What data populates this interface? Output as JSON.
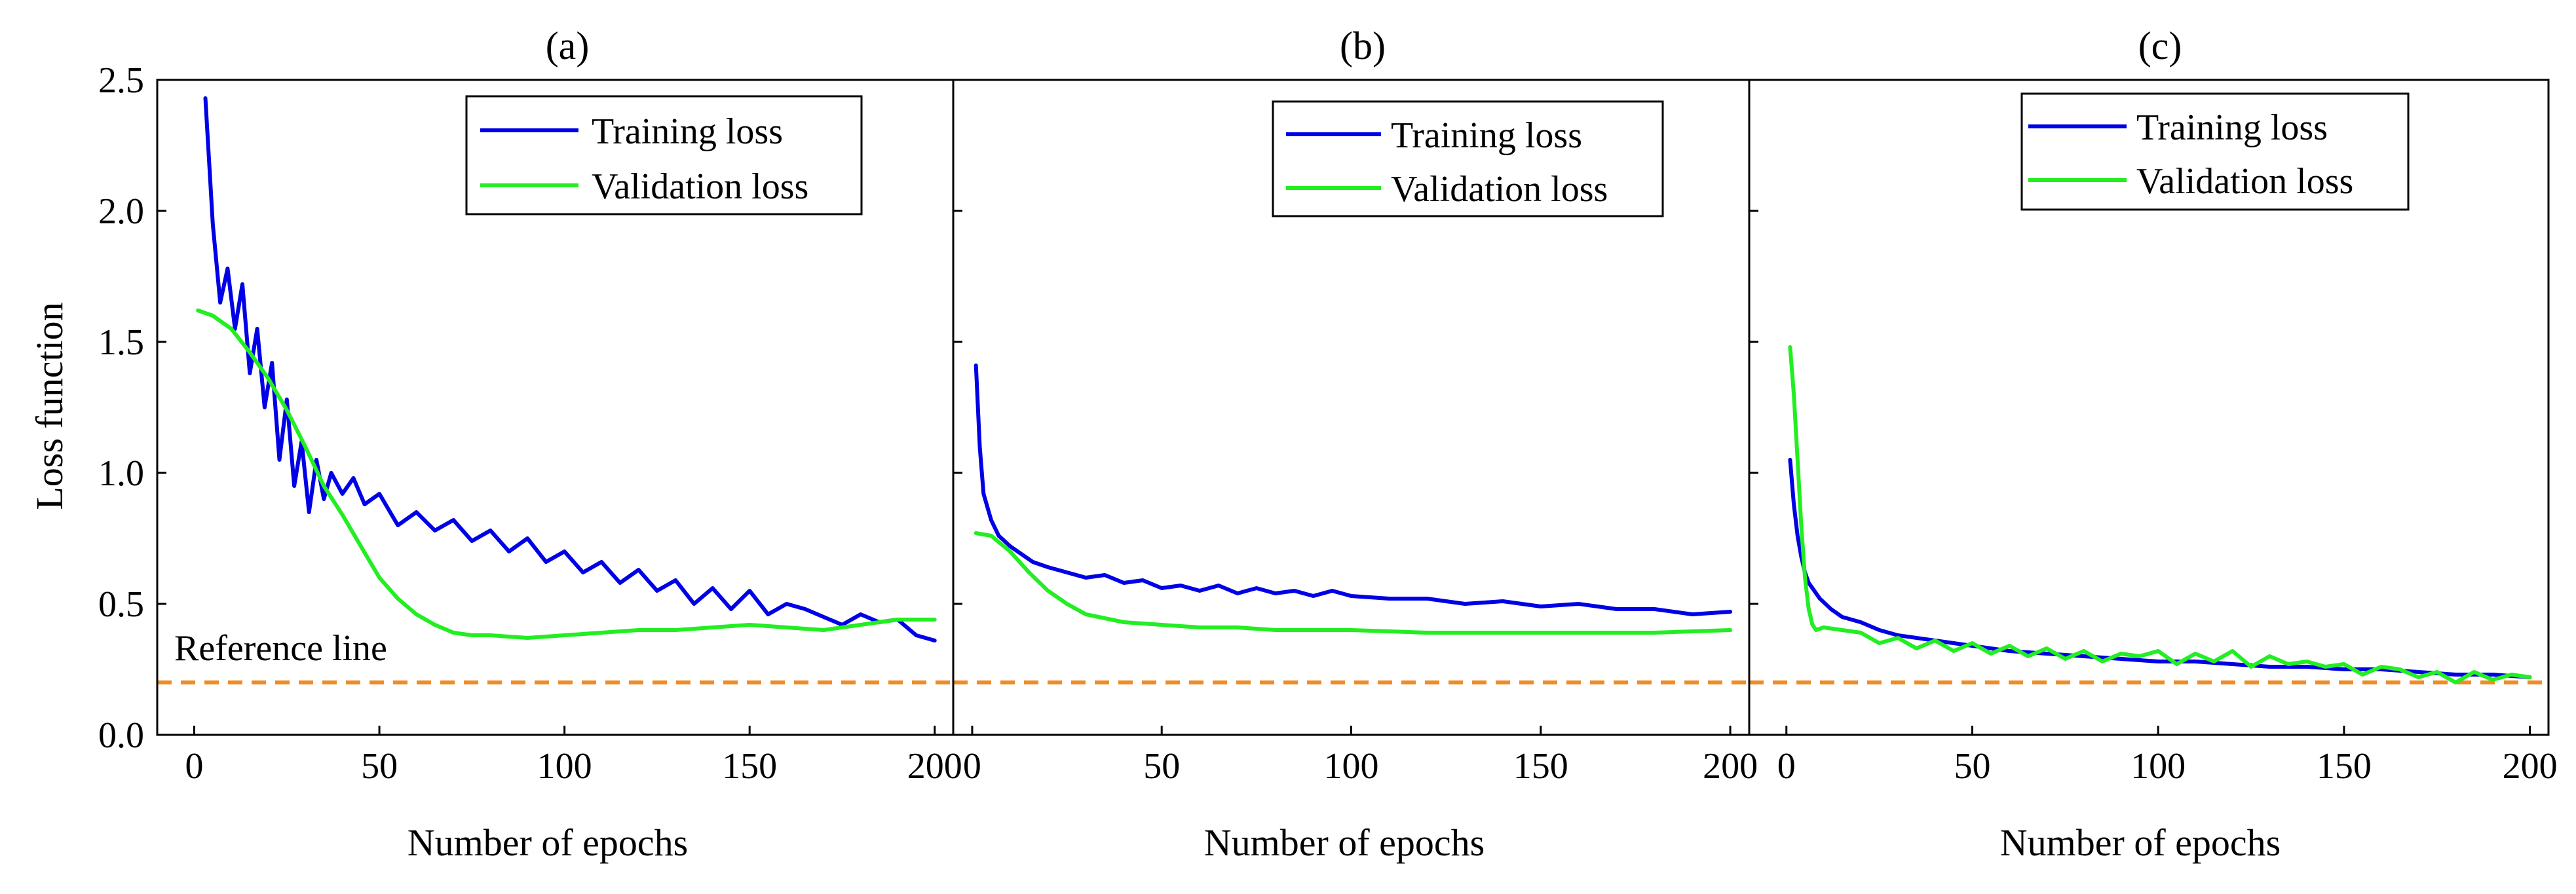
{
  "colors": {
    "training": "#0000e6",
    "validation": "#22ee22",
    "reference": "#f08a24",
    "axis": "#000000"
  },
  "shared": {
    "ylabel": "Loss function",
    "xlabel": "Number of epochs",
    "reference_label": "Reference line",
    "legend_training": "Training loss",
    "legend_validation": "Validation loss"
  },
  "chart_data": [
    {
      "type": "line",
      "title": "(a)",
      "xlabel": "Number of epochs",
      "ylabel": "Loss function",
      "xlim": [
        -10,
        205
      ],
      "ylim": [
        0,
        2.5
      ],
      "xticks": [
        "0",
        "50",
        "100",
        "150",
        "200"
      ],
      "yticks": [
        "0.0",
        "0.5",
        "1.0",
        "1.5",
        "2.0",
        "2.5"
      ],
      "reference_line": 0.2,
      "legend_position": "top-right",
      "series": [
        {
          "name": "Training loss",
          "x": [
            3,
            5,
            7,
            9,
            11,
            13,
            15,
            17,
            19,
            21,
            23,
            25,
            27,
            29,
            31,
            33,
            35,
            37,
            40,
            43,
            46,
            50,
            55,
            60,
            65,
            70,
            75,
            80,
            85,
            90,
            95,
            100,
            105,
            110,
            115,
            120,
            125,
            130,
            135,
            140,
            145,
            150,
            155,
            160,
            165,
            170,
            175,
            180,
            185,
            190,
            195,
            200
          ],
          "values": [
            2.43,
            1.95,
            1.65,
            1.78,
            1.55,
            1.72,
            1.38,
            1.55,
            1.25,
            1.42,
            1.05,
            1.28,
            0.95,
            1.12,
            0.85,
            1.05,
            0.9,
            1.0,
            0.92,
            0.98,
            0.88,
            0.92,
            0.8,
            0.85,
            0.78,
            0.82,
            0.74,
            0.78,
            0.7,
            0.75,
            0.66,
            0.7,
            0.62,
            0.66,
            0.58,
            0.63,
            0.55,
            0.59,
            0.5,
            0.56,
            0.48,
            0.55,
            0.46,
            0.5,
            0.48,
            0.45,
            0.42,
            0.46,
            0.43,
            0.44,
            0.38,
            0.36
          ]
        },
        {
          "name": "Validation loss",
          "x": [
            1,
            5,
            10,
            15,
            20,
            25,
            30,
            35,
            40,
            45,
            50,
            55,
            60,
            65,
            70,
            75,
            80,
            90,
            100,
            110,
            120,
            130,
            140,
            150,
            160,
            170,
            180,
            190,
            200
          ],
          "values": [
            1.62,
            1.6,
            1.55,
            1.46,
            1.36,
            1.24,
            1.1,
            0.95,
            0.84,
            0.72,
            0.6,
            0.52,
            0.46,
            0.42,
            0.39,
            0.38,
            0.38,
            0.37,
            0.38,
            0.39,
            0.4,
            0.4,
            0.41,
            0.42,
            0.41,
            0.4,
            0.42,
            0.44,
            0.44
          ]
        }
      ]
    },
    {
      "type": "line",
      "title": "(b)",
      "xlabel": "Number of epochs",
      "ylabel": "",
      "xlim": [
        -5,
        205
      ],
      "ylim": [
        0,
        2.5
      ],
      "xticks": [
        "0",
        "50",
        "100",
        "150",
        "200"
      ],
      "yticks": [],
      "reference_line": 0.2,
      "legend_position": "top-right",
      "series": [
        {
          "name": "Training loss",
          "x": [
            1,
            2,
            3,
            5,
            7,
            10,
            13,
            16,
            20,
            25,
            30,
            35,
            40,
            45,
            50,
            55,
            60,
            65,
            70,
            75,
            80,
            85,
            90,
            95,
            100,
            110,
            120,
            130,
            140,
            150,
            160,
            170,
            180,
            190,
            200
          ],
          "values": [
            1.41,
            1.1,
            0.92,
            0.82,
            0.76,
            0.72,
            0.69,
            0.66,
            0.64,
            0.62,
            0.6,
            0.61,
            0.58,
            0.59,
            0.56,
            0.57,
            0.55,
            0.57,
            0.54,
            0.56,
            0.54,
            0.55,
            0.53,
            0.55,
            0.53,
            0.52,
            0.52,
            0.5,
            0.51,
            0.49,
            0.5,
            0.48,
            0.48,
            0.46,
            0.47
          ]
        },
        {
          "name": "Validation loss",
          "x": [
            1,
            5,
            10,
            15,
            20,
            25,
            30,
            40,
            50,
            60,
            70,
            80,
            100,
            120,
            140,
            160,
            180,
            200
          ],
          "values": [
            0.77,
            0.76,
            0.7,
            0.62,
            0.55,
            0.5,
            0.46,
            0.43,
            0.42,
            0.41,
            0.41,
            0.4,
            0.4,
            0.39,
            0.39,
            0.39,
            0.39,
            0.4
          ]
        }
      ]
    },
    {
      "type": "line",
      "title": "(c)",
      "xlabel": "Number of epochs",
      "ylabel": "",
      "xlim": [
        -10,
        205
      ],
      "ylim": [
        0,
        2.5
      ],
      "xticks": [
        "0",
        "50",
        "100",
        "150",
        "200"
      ],
      "yticks": [],
      "reference_line": 0.2,
      "legend_position": "top-right",
      "series": [
        {
          "name": "Training loss",
          "x": [
            1,
            2,
            3,
            4,
            5,
            6,
            7,
            9,
            12,
            15,
            20,
            25,
            30,
            40,
            50,
            60,
            70,
            80,
            90,
            100,
            110,
            120,
            130,
            140,
            150,
            160,
            170,
            180,
            190,
            200
          ],
          "values": [
            1.05,
            0.88,
            0.76,
            0.68,
            0.62,
            0.58,
            0.56,
            0.52,
            0.48,
            0.45,
            0.43,
            0.4,
            0.38,
            0.36,
            0.34,
            0.32,
            0.31,
            0.3,
            0.29,
            0.28,
            0.28,
            0.27,
            0.26,
            0.26,
            0.25,
            0.25,
            0.24,
            0.23,
            0.23,
            0.22
          ]
        },
        {
          "name": "Validation loss",
          "x": [
            1,
            2,
            3,
            4,
            5,
            6,
            7,
            8,
            10,
            15,
            20,
            25,
            30,
            35,
            40,
            45,
            50,
            55,
            60,
            65,
            70,
            75,
            80,
            85,
            90,
            95,
            100,
            105,
            110,
            115,
            120,
            125,
            130,
            135,
            140,
            145,
            150,
            155,
            160,
            165,
            170,
            175,
            180,
            185,
            190,
            195,
            200
          ],
          "values": [
            1.48,
            1.3,
            1.05,
            0.8,
            0.6,
            0.48,
            0.42,
            0.4,
            0.41,
            0.4,
            0.39,
            0.35,
            0.37,
            0.33,
            0.36,
            0.32,
            0.35,
            0.31,
            0.34,
            0.3,
            0.33,
            0.29,
            0.32,
            0.28,
            0.31,
            0.3,
            0.32,
            0.27,
            0.31,
            0.28,
            0.32,
            0.26,
            0.3,
            0.27,
            0.28,
            0.26,
            0.27,
            0.23,
            0.26,
            0.25,
            0.22,
            0.24,
            0.2,
            0.24,
            0.21,
            0.23,
            0.22
          ]
        }
      ]
    }
  ]
}
